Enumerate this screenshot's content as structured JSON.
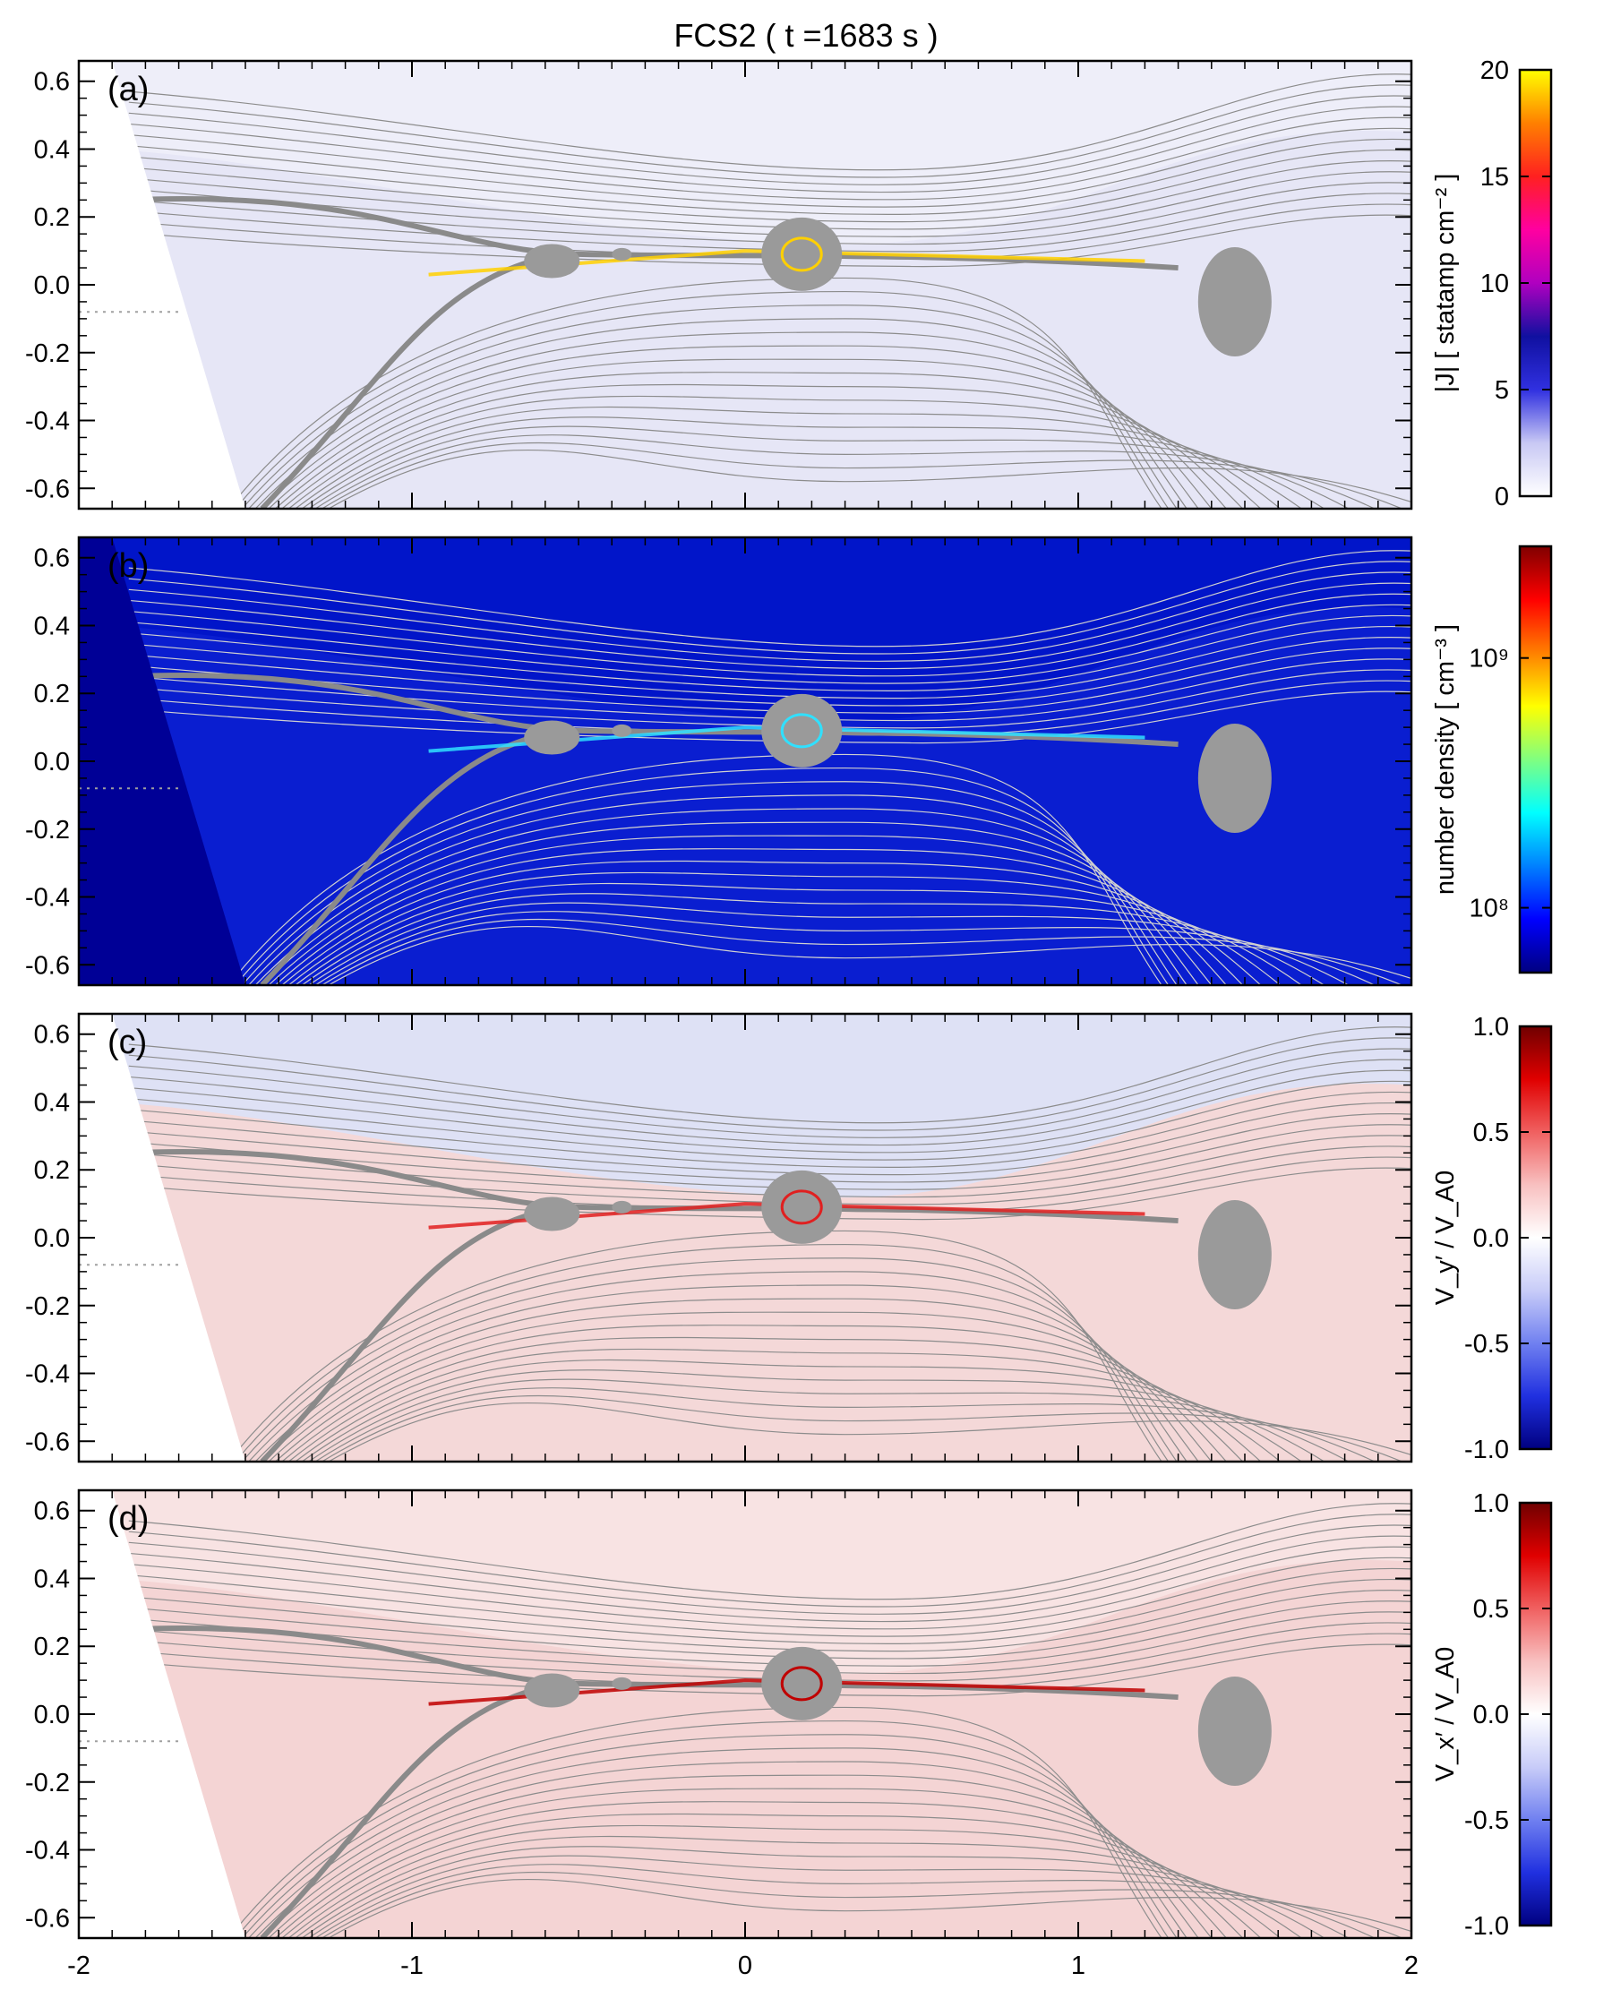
{
  "chart_data": {
    "type": "heatmap",
    "title": "FCS2 ( t =1683 s )",
    "xlim": [
      -2,
      2
    ],
    "ylim": [
      -0.66,
      0.66
    ],
    "x_ticks": [
      -2,
      -1,
      0,
      1,
      2
    ],
    "x_tick_labels": [
      "-2",
      "-1",
      "0",
      "1",
      "2"
    ],
    "y_ticks": [
      0.6,
      0.4,
      0.2,
      0.0,
      -0.2,
      -0.4,
      -0.6
    ],
    "y_tick_labels": [
      "0.6",
      "0.4",
      "0.2",
      "0.0",
      "-0.2",
      "-0.4",
      "-0.6"
    ],
    "panels": [
      {
        "label": "(a)",
        "colorbar": {
          "title": "|J| [ statamp cm⁻² ]",
          "scale": "linear",
          "range": [
            0,
            20
          ],
          "ticks": [
            0,
            5,
            10,
            15,
            20
          ],
          "tick_labels": [
            "0",
            "5",
            "10",
            "15",
            "20"
          ],
          "colors": [
            "#ffffff",
            "#c8c8f4",
            "#3030e0",
            "#1010a0",
            "#b000c0",
            "#ff00a0",
            "#ff2020",
            "#ff8000",
            "#ffff00"
          ]
        }
      },
      {
        "label": "(b)",
        "colorbar": {
          "title": "number density [ cm⁻³ ]",
          "scale": "log",
          "range": [
            55000000.0,
            2800000000.0
          ],
          "ticks": [
            100000000,
            1000000000
          ],
          "tick_labels": [
            "10⁸",
            "10⁹"
          ],
          "colors": [
            "#000080",
            "#0000ff",
            "#0080ff",
            "#00ffff",
            "#80ff80",
            "#ffff00",
            "#ff8000",
            "#ff0000",
            "#800000"
          ]
        }
      },
      {
        "label": "(c)",
        "colorbar": {
          "title": "V_y′ / V_A0",
          "scale": "linear",
          "range": [
            -1.0,
            1.0
          ],
          "ticks": [
            -1.0,
            -0.5,
            0.0,
            0.5,
            1.0
          ],
          "tick_labels": [
            "-1.0",
            "-0.5",
            "0.0",
            "0.5",
            "1.0"
          ],
          "colors": [
            "#000080",
            "#2030e0",
            "#7080f0",
            "#c8ccf8",
            "#ffffff",
            "#f8c0c0",
            "#f06060",
            "#e00000",
            "#700000"
          ]
        }
      },
      {
        "label": "(d)",
        "colorbar": {
          "title": "V_x′ / V_A0",
          "scale": "linear",
          "range": [
            -1.0,
            1.0
          ],
          "ticks": [
            -1.0,
            -0.5,
            0.0,
            0.5,
            1.0
          ],
          "tick_labels": [
            "-1.0",
            "-0.5",
            "0.0",
            "0.5",
            "1.0"
          ],
          "colors": [
            "#000080",
            "#2030e0",
            "#7080f0",
            "#c8ccf8",
            "#ffffff",
            "#f8c0c0",
            "#f06060",
            "#e00000",
            "#700000"
          ]
        }
      }
    ]
  }
}
